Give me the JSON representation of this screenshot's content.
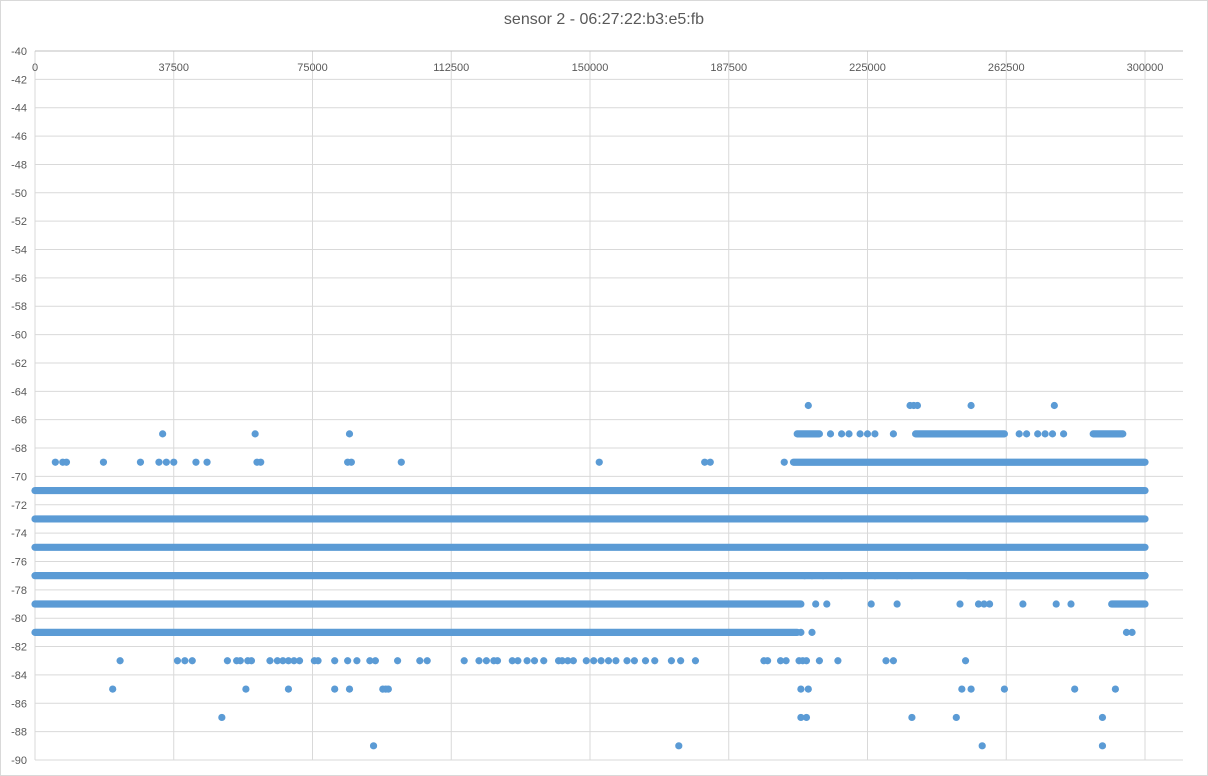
{
  "chart_data": {
    "type": "scatter",
    "title": "sensor 2 - 06:27:22:b3:e5:fb",
    "xlabel": "",
    "ylabel": "",
    "xlim": [
      0,
      300000
    ],
    "ylim": [
      -90,
      -40
    ],
    "x_ticks": [
      0,
      37500,
      75000,
      112500,
      150000,
      187500,
      225000,
      262500,
      300000
    ],
    "y_ticks": [
      -40,
      -42,
      -44,
      -46,
      -48,
      -50,
      -52,
      -54,
      -56,
      -58,
      -60,
      -62,
      -64,
      -66,
      -68,
      -70,
      -72,
      -74,
      -76,
      -78,
      -80,
      -82,
      -84,
      -86,
      -88,
      -90
    ],
    "x_axis_position": "top",
    "grid": true,
    "marker_color": "#5b9bd5",
    "bands": [
      {
        "y": -71,
        "segments": [
          [
            0,
            300000
          ]
        ]
      },
      {
        "y": -73,
        "segments": [
          [
            0,
            300000
          ]
        ]
      },
      {
        "y": -75,
        "segments": [
          [
            0,
            300000
          ]
        ]
      },
      {
        "y": -77,
        "segments": [
          [
            0,
            300000
          ]
        ]
      },
      {
        "y": -79,
        "segments": [
          [
            0,
            207000
          ]
        ]
      },
      {
        "y": -81,
        "segments": [
          [
            0,
            206000
          ]
        ]
      },
      {
        "y": -69,
        "segments": [
          [
            205000,
            300000
          ]
        ]
      },
      {
        "y": -67,
        "segments": [
          [
            206000,
            212000
          ],
          [
            238000,
            262000
          ],
          [
            286000,
            294000
          ]
        ]
      },
      {
        "y": -77,
        "segments": [
          [
            252000,
            300000
          ]
        ]
      },
      {
        "y": -79,
        "segments": [
          [
            291000,
            300000
          ]
        ]
      }
    ],
    "points": [
      {
        "x": 5500,
        "y": -69
      },
      {
        "x": 7500,
        "y": -69
      },
      {
        "x": 8500,
        "y": -69
      },
      {
        "x": 18500,
        "y": -69
      },
      {
        "x": 28500,
        "y": -69
      },
      {
        "x": 33500,
        "y": -69
      },
      {
        "x": 35500,
        "y": -69
      },
      {
        "x": 37500,
        "y": -69
      },
      {
        "x": 43500,
        "y": -69
      },
      {
        "x": 46500,
        "y": -69
      },
      {
        "x": 60000,
        "y": -69
      },
      {
        "x": 61000,
        "y": -69
      },
      {
        "x": 84500,
        "y": -69
      },
      {
        "x": 85500,
        "y": -69
      },
      {
        "x": 99000,
        "y": -69
      },
      {
        "x": 152500,
        "y": -69
      },
      {
        "x": 181000,
        "y": -69
      },
      {
        "x": 182500,
        "y": -69
      },
      {
        "x": 202500,
        "y": -69
      },
      {
        "x": 34500,
        "y": -67
      },
      {
        "x": 59500,
        "y": -67
      },
      {
        "x": 85000,
        "y": -67
      },
      {
        "x": 209000,
        "y": -65
      },
      {
        "x": 236500,
        "y": -65
      },
      {
        "x": 237500,
        "y": -65
      },
      {
        "x": 238500,
        "y": -65
      },
      {
        "x": 253000,
        "y": -65
      },
      {
        "x": 275500,
        "y": -65
      },
      {
        "x": 215000,
        "y": -67
      },
      {
        "x": 218000,
        "y": -67
      },
      {
        "x": 220000,
        "y": -67
      },
      {
        "x": 223000,
        "y": -67
      },
      {
        "x": 225000,
        "y": -67
      },
      {
        "x": 227000,
        "y": -67
      },
      {
        "x": 232000,
        "y": -67
      },
      {
        "x": 266000,
        "y": -67
      },
      {
        "x": 268000,
        "y": -67
      },
      {
        "x": 271000,
        "y": -67
      },
      {
        "x": 273000,
        "y": -67
      },
      {
        "x": 275000,
        "y": -67
      },
      {
        "x": 278000,
        "y": -67
      },
      {
        "x": 208000,
        "y": -77
      },
      {
        "x": 210000,
        "y": -77
      },
      {
        "x": 213000,
        "y": -77
      },
      {
        "x": 218000,
        "y": -77
      },
      {
        "x": 225000,
        "y": -77
      },
      {
        "x": 227000,
        "y": -77
      },
      {
        "x": 233000,
        "y": -77
      },
      {
        "x": 237000,
        "y": -77
      },
      {
        "x": 211000,
        "y": -79
      },
      {
        "x": 214000,
        "y": -79
      },
      {
        "x": 226000,
        "y": -79
      },
      {
        "x": 233000,
        "y": -79
      },
      {
        "x": 250000,
        "y": -79
      },
      {
        "x": 255000,
        "y": -79
      },
      {
        "x": 256500,
        "y": -79
      },
      {
        "x": 258000,
        "y": -79
      },
      {
        "x": 267000,
        "y": -79
      },
      {
        "x": 276000,
        "y": -79
      },
      {
        "x": 280000,
        "y": -79
      },
      {
        "x": 210000,
        "y": -81
      },
      {
        "x": 207000,
        "y": -81
      },
      {
        "x": 295000,
        "y": -81
      },
      {
        "x": 296500,
        "y": -81
      },
      {
        "x": 23000,
        "y": -83
      },
      {
        "x": 38500,
        "y": -83
      },
      {
        "x": 40500,
        "y": -83
      },
      {
        "x": 42500,
        "y": -83
      },
      {
        "x": 52000,
        "y": -83
      },
      {
        "x": 54500,
        "y": -83
      },
      {
        "x": 55500,
        "y": -83
      },
      {
        "x": 57500,
        "y": -83
      },
      {
        "x": 58500,
        "y": -83
      },
      {
        "x": 63500,
        "y": -83
      },
      {
        "x": 65500,
        "y": -83
      },
      {
        "x": 67000,
        "y": -83
      },
      {
        "x": 68500,
        "y": -83
      },
      {
        "x": 70000,
        "y": -83
      },
      {
        "x": 71500,
        "y": -83
      },
      {
        "x": 75500,
        "y": -83
      },
      {
        "x": 76500,
        "y": -83
      },
      {
        "x": 81000,
        "y": -83
      },
      {
        "x": 84500,
        "y": -83
      },
      {
        "x": 87000,
        "y": -83
      },
      {
        "x": 90500,
        "y": -83
      },
      {
        "x": 92000,
        "y": -83
      },
      {
        "x": 98000,
        "y": -83
      },
      {
        "x": 104000,
        "y": -83
      },
      {
        "x": 106000,
        "y": -83
      },
      {
        "x": 116000,
        "y": -83
      },
      {
        "x": 120000,
        "y": -83
      },
      {
        "x": 122000,
        "y": -83
      },
      {
        "x": 124000,
        "y": -83
      },
      {
        "x": 125000,
        "y": -83
      },
      {
        "x": 129000,
        "y": -83
      },
      {
        "x": 130500,
        "y": -83
      },
      {
        "x": 133000,
        "y": -83
      },
      {
        "x": 135000,
        "y": -83
      },
      {
        "x": 137500,
        "y": -83
      },
      {
        "x": 141500,
        "y": -83
      },
      {
        "x": 142500,
        "y": -83
      },
      {
        "x": 144000,
        "y": -83
      },
      {
        "x": 145500,
        "y": -83
      },
      {
        "x": 149000,
        "y": -83
      },
      {
        "x": 151000,
        "y": -83
      },
      {
        "x": 153000,
        "y": -83
      },
      {
        "x": 155000,
        "y": -83
      },
      {
        "x": 157000,
        "y": -83
      },
      {
        "x": 160000,
        "y": -83
      },
      {
        "x": 162000,
        "y": -83
      },
      {
        "x": 165000,
        "y": -83
      },
      {
        "x": 167500,
        "y": -83
      },
      {
        "x": 172000,
        "y": -83
      },
      {
        "x": 174500,
        "y": -83
      },
      {
        "x": 178500,
        "y": -83
      },
      {
        "x": 197000,
        "y": -83
      },
      {
        "x": 198000,
        "y": -83
      },
      {
        "x": 201500,
        "y": -83
      },
      {
        "x": 203000,
        "y": -83
      },
      {
        "x": 206500,
        "y": -83
      },
      {
        "x": 207500,
        "y": -83
      },
      {
        "x": 208500,
        "y": -83
      },
      {
        "x": 212000,
        "y": -83
      },
      {
        "x": 217000,
        "y": -83
      },
      {
        "x": 230000,
        "y": -83
      },
      {
        "x": 232000,
        "y": -83
      },
      {
        "x": 251500,
        "y": -83
      },
      {
        "x": 21000,
        "y": -85
      },
      {
        "x": 57000,
        "y": -85
      },
      {
        "x": 68500,
        "y": -85
      },
      {
        "x": 81000,
        "y": -85
      },
      {
        "x": 85000,
        "y": -85
      },
      {
        "x": 94000,
        "y": -85
      },
      {
        "x": 94800,
        "y": -85
      },
      {
        "x": 95500,
        "y": -85
      },
      {
        "x": 207000,
        "y": -85
      },
      {
        "x": 209000,
        "y": -85
      },
      {
        "x": 250500,
        "y": -85
      },
      {
        "x": 253000,
        "y": -85
      },
      {
        "x": 262000,
        "y": -85
      },
      {
        "x": 281000,
        "y": -85
      },
      {
        "x": 292000,
        "y": -85
      },
      {
        "x": 50500,
        "y": -87
      },
      {
        "x": 207000,
        "y": -87
      },
      {
        "x": 208500,
        "y": -87
      },
      {
        "x": 237000,
        "y": -87
      },
      {
        "x": 249000,
        "y": -87
      },
      {
        "x": 288500,
        "y": -87
      },
      {
        "x": 91500,
        "y": -89
      },
      {
        "x": 174000,
        "y": -89
      },
      {
        "x": 256000,
        "y": -89
      },
      {
        "x": 288500,
        "y": -89
      }
    ]
  }
}
